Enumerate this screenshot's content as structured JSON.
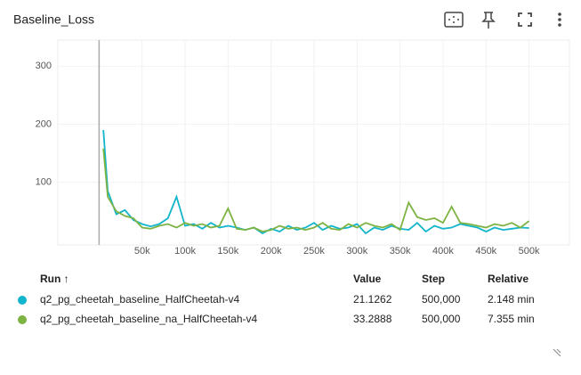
{
  "chart_data": {
    "type": "line",
    "title": "Baseline_Loss",
    "x": [
      5000,
      10000,
      20000,
      30000,
      40000,
      50000,
      60000,
      70000,
      80000,
      90000,
      100000,
      110000,
      120000,
      130000,
      140000,
      150000,
      160000,
      170000,
      180000,
      190000,
      200000,
      210000,
      220000,
      230000,
      240000,
      250000,
      260000,
      270000,
      280000,
      290000,
      300000,
      310000,
      320000,
      330000,
      340000,
      350000,
      360000,
      370000,
      380000,
      390000,
      400000,
      410000,
      420000,
      430000,
      440000,
      450000,
      460000,
      470000,
      480000,
      490000,
      500000
    ],
    "series": [
      {
        "name": "q2_pg_cheetah_baseline_HalfCheetah-v4",
        "color": "#12b5cb",
        "values": [
          190,
          85,
          45,
          52,
          35,
          28,
          24,
          28,
          38,
          75,
          25,
          28,
          20,
          30,
          22,
          25,
          22,
          18,
          22,
          12,
          20,
          15,
          25,
          18,
          22,
          30,
          18,
          25,
          20,
          22,
          28,
          12,
          22,
          18,
          25,
          20,
          18,
          30,
          15,
          25,
          20,
          22,
          28,
          25,
          22,
          15,
          22,
          18,
          20,
          22,
          21.1262
        ]
      },
      {
        "name": "q2_pg_cheetah_baseline_na_HalfCheetah-v4",
        "color": "#7cb342",
        "values": [
          158,
          75,
          50,
          42,
          38,
          22,
          20,
          25,
          28,
          22,
          30,
          25,
          28,
          22,
          25,
          55,
          20,
          18,
          22,
          15,
          18,
          25,
          20,
          22,
          18,
          22,
          30,
          20,
          18,
          28,
          22,
          30,
          25,
          22,
          28,
          18,
          65,
          40,
          35,
          38,
          30,
          58,
          30,
          28,
          25,
          22,
          28,
          25,
          30,
          22,
          33.2888
        ]
      }
    ],
    "xlim": [
      -48000,
      547000
    ],
    "ylim": [
      -8,
      345
    ],
    "xticks": [
      {
        "value": 50000,
        "label": "50k"
      },
      {
        "value": 100000,
        "label": "100k"
      },
      {
        "value": 150000,
        "label": "150k"
      },
      {
        "value": 200000,
        "label": "200k"
      },
      {
        "value": 250000,
        "label": "250k"
      },
      {
        "value": 300000,
        "label": "300k"
      },
      {
        "value": 350000,
        "label": "350k"
      },
      {
        "value": 400000,
        "label": "400k"
      },
      {
        "value": 450000,
        "label": "450k"
      },
      {
        "value": 500000,
        "label": "500k"
      }
    ],
    "yticks": [
      100,
      200,
      300
    ]
  },
  "table": {
    "columns": [
      "Run ↑",
      "Value",
      "Step",
      "Relative"
    ],
    "rows": [
      [
        "21.1262",
        "500,000",
        "2.148 min"
      ],
      [
        "33.2888",
        "500,000",
        "7.355 min"
      ]
    ]
  }
}
